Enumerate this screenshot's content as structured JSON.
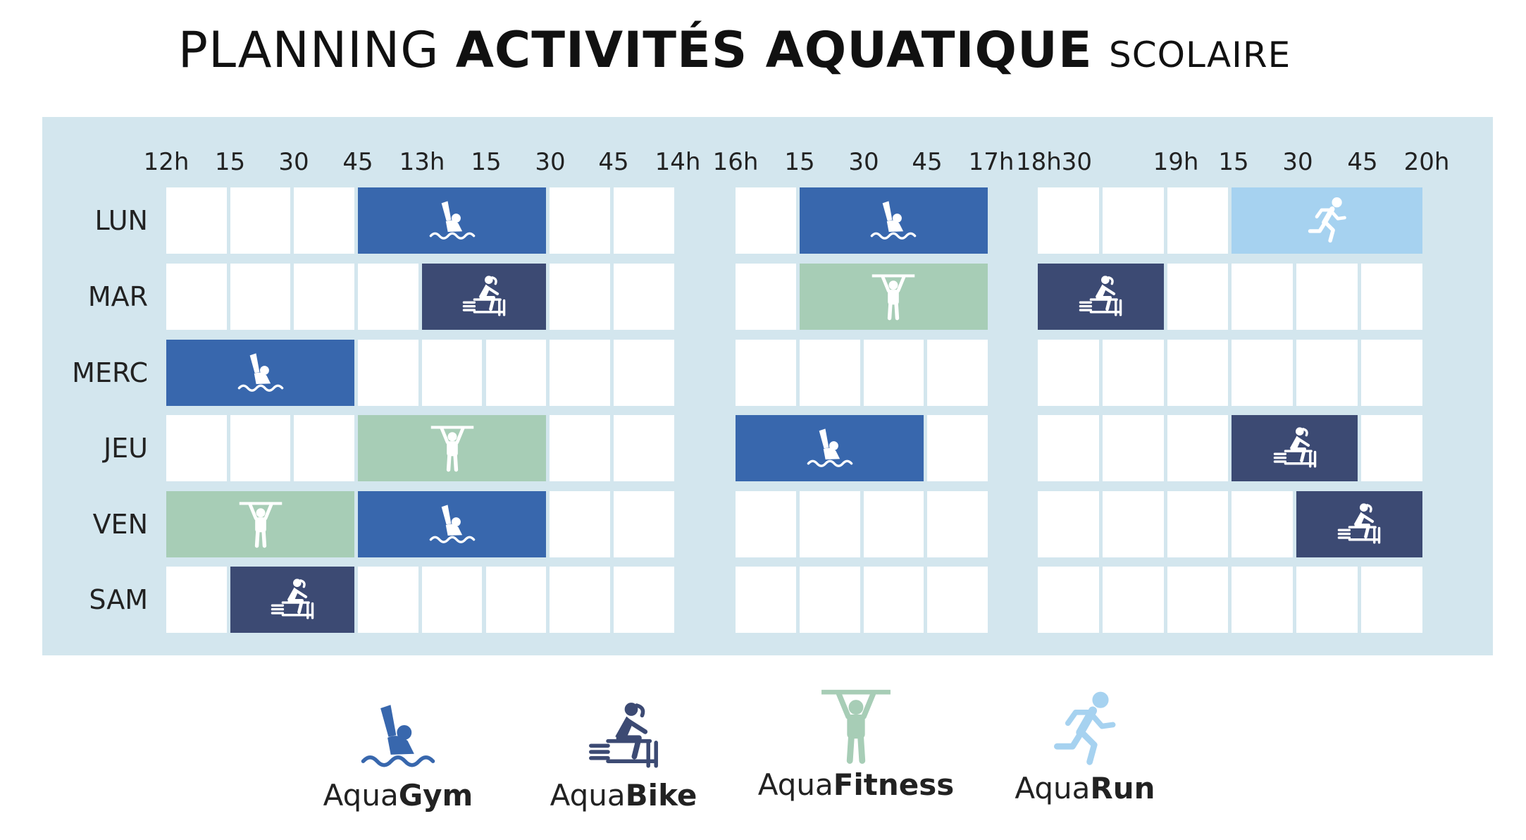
{
  "title": {
    "light": "PLANNING",
    "bold": "ACTIVITÉS AQUATIQUE",
    "small": "SCOLAIRE"
  },
  "colors": {
    "panel": "#d3e6ee",
    "aquagym": "#3867ad",
    "aquabike": "#3c4a73",
    "aquafitness": "#a7cdb6",
    "aquarun": "#a6d2f0"
  },
  "hours": [
    "12h",
    "15",
    "30",
    "45",
    "13h",
    "15",
    "30",
    "45",
    "14h",
    "16h",
    "15",
    "30",
    "45",
    "17h",
    "18h30",
    "19h",
    "15",
    "30",
    "45",
    "20h"
  ],
  "days": [
    "LUN",
    "MAR",
    "MERC",
    "JEU",
    "VEN",
    "SAM"
  ],
  "legend": [
    {
      "prefix": "Aqua",
      "name": "Gym",
      "icon": "swimmer-icon"
    },
    {
      "prefix": "Aqua",
      "name": "Bike",
      "icon": "cyclist-icon"
    },
    {
      "prefix": "Aqua",
      "name": "Fitness",
      "icon": "weightlifter-icon"
    },
    {
      "prefix": "Aqua",
      "name": "Run",
      "icon": "runner-icon"
    }
  ],
  "schedule": [
    {
      "day": "LUN",
      "activity": "aquagym",
      "start": "12h45",
      "end": "13h30"
    },
    {
      "day": "LUN",
      "activity": "aquagym",
      "start": "16h15",
      "end": "17h"
    },
    {
      "day": "LUN",
      "activity": "aquarun",
      "start": "19h15",
      "end": "20h"
    },
    {
      "day": "MAR",
      "activity": "aquabike",
      "start": "13h",
      "end": "13h30"
    },
    {
      "day": "MAR",
      "activity": "aquafitness",
      "start": "16h15",
      "end": "17h"
    },
    {
      "day": "MAR",
      "activity": "aquabike",
      "start": "18h30",
      "end": "19h"
    },
    {
      "day": "MERC",
      "activity": "aquagym",
      "start": "12h",
      "end": "12h45"
    },
    {
      "day": "JEU",
      "activity": "aquafitness",
      "start": "12h45",
      "end": "13h30"
    },
    {
      "day": "JEU",
      "activity": "aquagym",
      "start": "16h",
      "end": "16h45"
    },
    {
      "day": "JEU",
      "activity": "aquabike",
      "start": "19h15",
      "end": "19h45"
    },
    {
      "day": "VEN",
      "activity": "aquafitness",
      "start": "12h",
      "end": "12h45"
    },
    {
      "day": "VEN",
      "activity": "aquagym",
      "start": "12h45",
      "end": "13h30"
    },
    {
      "day": "VEN",
      "activity": "aquabike",
      "start": "19h30",
      "end": "20h"
    },
    {
      "day": "SAM",
      "activity": "aquabike",
      "start": "12h15",
      "end": "12h45"
    }
  ]
}
